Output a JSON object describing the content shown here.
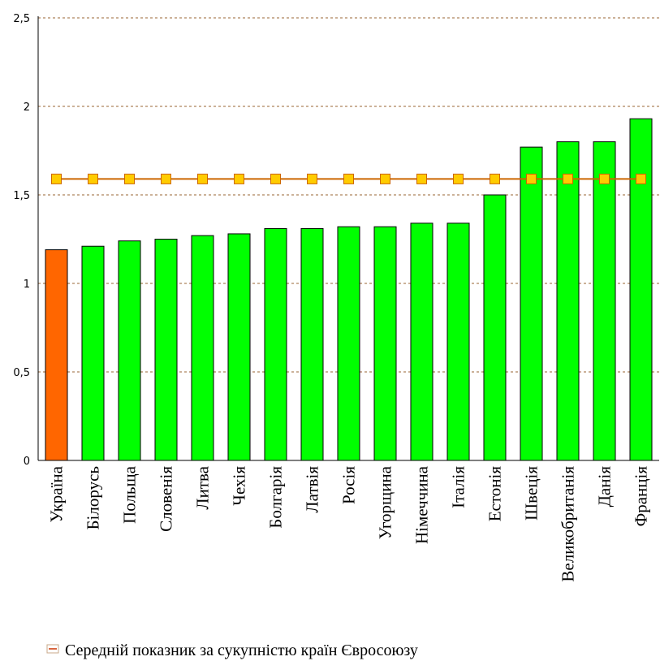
{
  "chart_data": {
    "type": "bar",
    "categories": [
      "Україна",
      "Білорусь",
      "Польща",
      "Словенія",
      "Литва",
      "Чехія",
      "Болгарія",
      "Латвія",
      "Росія",
      "Угорщина",
      "Німеччина",
      "Італія",
      "Естонія",
      "Швеція",
      "Великобританія",
      "Данія",
      "Франція"
    ],
    "series": [
      {
        "values": [
          1.19,
          1.21,
          1.24,
          1.25,
          1.27,
          1.28,
          1.31,
          1.31,
          1.32,
          1.32,
          1.34,
          1.34,
          1.5,
          1.77,
          1.8,
          1.8,
          1.93
        ]
      },
      {
        "name": "Середній показник за сукупністю країн Євросоюзу",
        "type": "line",
        "values": [
          1.59,
          1.59,
          1.59,
          1.59,
          1.59,
          1.59,
          1.59,
          1.59,
          1.59,
          1.59,
          1.59,
          1.59,
          1.59,
          1.59,
          1.59,
          1.59,
          1.59
        ]
      }
    ],
    "highlight_category": "Україна",
    "ylim": [
      0,
      2.5
    ],
    "yticks": [
      "0",
      "0,5",
      "1",
      "1,5",
      "2",
      "2,5"
    ],
    "ytick_values": [
      0,
      0.5,
      1,
      1.5,
      2,
      2.5
    ],
    "grid": true,
    "legend_position": "bottom",
    "colors": {
      "bar": "#00ff00",
      "highlight_bar": "#ff6600",
      "line": "#cc6600",
      "marker_fill": "#ffcc00",
      "grid": "#996633"
    }
  }
}
